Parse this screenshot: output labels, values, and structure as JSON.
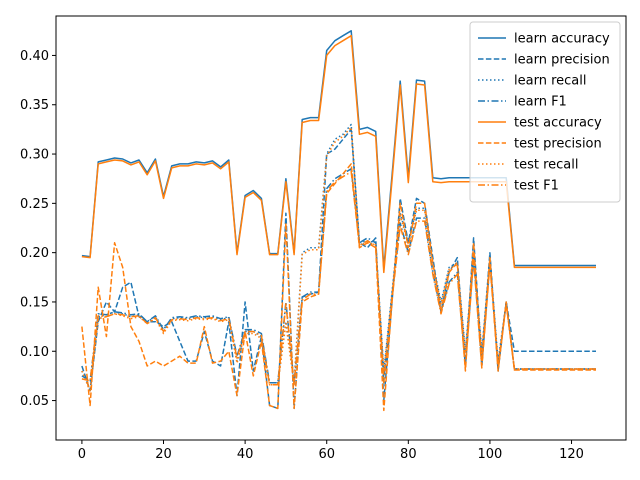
{
  "chart_data": {
    "type": "line",
    "title": "",
    "xlabel": "",
    "ylabel": "",
    "xlim": [
      -6.35,
      133.35
    ],
    "ylim": [
      0.01,
      0.44
    ],
    "xticks": [
      0,
      20,
      40,
      60,
      80,
      100,
      120
    ],
    "yticks": [
      0.05,
      0.1,
      0.15,
      0.2,
      0.25,
      0.3,
      0.35,
      0.4
    ],
    "grid": false,
    "legend_position": "top-right",
    "colors": {
      "learn": "#1f77b4",
      "test": "#ff7f0e"
    },
    "series": [
      {
        "name": "learn accuracy",
        "group": "learn",
        "style": "solid",
        "x": [
          0,
          2,
          4,
          6,
          8,
          10,
          12,
          14,
          16,
          18,
          20,
          22,
          24,
          26,
          28,
          30,
          32,
          34,
          36,
          38,
          40,
          42,
          44,
          46,
          48,
          50,
          52,
          54,
          56,
          58,
          60,
          62,
          64,
          66,
          68,
          70,
          72,
          74,
          76,
          78,
          80,
          82,
          84,
          86,
          88,
          90,
          92,
          94,
          96,
          98,
          100,
          102,
          104,
          106,
          108,
          110,
          112,
          114,
          116,
          118,
          120,
          122,
          124,
          126
        ],
        "values": [
          0.197,
          0.196,
          0.292,
          0.294,
          0.296,
          0.295,
          0.291,
          0.294,
          0.281,
          0.295,
          0.257,
          0.288,
          0.29,
          0.29,
          0.292,
          0.291,
          0.293,
          0.287,
          0.294,
          0.2,
          0.258,
          0.263,
          0.255,
          0.199,
          0.199,
          0.275,
          0.2,
          0.335,
          0.337,
          0.337,
          0.405,
          0.415,
          0.42,
          0.425,
          0.325,
          0.327,
          0.323,
          0.184,
          0.278,
          0.374,
          0.276,
          0.375,
          0.374,
          0.276,
          0.275,
          0.276,
          0.276,
          0.276,
          0.276,
          0.276,
          0.276,
          0.276,
          0.276,
          0.187,
          0.187,
          0.187,
          0.187,
          0.187,
          0.187,
          0.187,
          0.187,
          0.187,
          0.187,
          0.187
        ]
      },
      {
        "name": "learn precision",
        "group": "learn",
        "style": "dashed",
        "x": [
          0,
          2,
          4,
          6,
          8,
          10,
          12,
          14,
          16,
          18,
          20,
          22,
          24,
          26,
          28,
          30,
          32,
          34,
          36,
          38,
          40,
          42,
          44,
          46,
          48,
          50,
          52,
          54,
          56,
          58,
          60,
          62,
          64,
          66,
          68,
          70,
          72,
          74,
          76,
          78,
          80,
          82,
          84,
          86,
          88,
          90,
          92,
          94,
          96,
          98,
          100,
          102,
          104,
          106,
          108,
          110,
          112,
          114,
          116,
          118,
          120,
          122,
          124,
          126
        ],
        "values": [
          0.085,
          0.06,
          0.13,
          0.15,
          0.14,
          0.165,
          0.17,
          0.135,
          0.13,
          0.13,
          0.125,
          0.13,
          0.11,
          0.09,
          0.09,
          0.12,
          0.09,
          0.085,
          0.13,
          0.055,
          0.15,
          0.08,
          0.115,
          0.045,
          0.042,
          0.24,
          0.042,
          0.155,
          0.158,
          0.16,
          0.3,
          0.305,
          0.315,
          0.325,
          0.21,
          0.205,
          0.215,
          0.05,
          0.15,
          0.255,
          0.21,
          0.255,
          0.25,
          0.195,
          0.14,
          0.18,
          0.195,
          0.085,
          0.215,
          0.09,
          0.2,
          0.08,
          0.15,
          0.1,
          0.1,
          0.1,
          0.1,
          0.1,
          0.1,
          0.1,
          0.1,
          0.1,
          0.1,
          0.1
        ]
      },
      {
        "name": "learn recall",
        "group": "learn",
        "style": "dotted",
        "x": [
          0,
          2,
          4,
          6,
          8,
          10,
          12,
          14,
          16,
          18,
          20,
          22,
          24,
          26,
          28,
          30,
          32,
          34,
          36,
          38,
          40,
          42,
          44,
          46,
          48,
          50,
          52,
          54,
          56,
          58,
          60,
          62,
          64,
          66,
          68,
          70,
          72,
          74,
          76,
          78,
          80,
          82,
          84,
          86,
          88,
          90,
          92,
          94,
          96,
          98,
          100,
          102,
          104,
          106,
          108,
          110,
          112,
          114,
          116,
          118,
          120,
          122,
          124,
          126
        ],
        "values": [
          0.08,
          0.06,
          0.135,
          0.137,
          0.14,
          0.138,
          0.135,
          0.137,
          0.13,
          0.135,
          0.12,
          0.133,
          0.134,
          0.133,
          0.135,
          0.134,
          0.135,
          0.132,
          0.134,
          0.09,
          0.12,
          0.12,
          0.115,
          0.068,
          0.068,
          0.13,
          0.068,
          0.2,
          0.205,
          0.205,
          0.3,
          0.315,
          0.32,
          0.33,
          0.21,
          0.212,
          0.21,
          0.08,
          0.16,
          0.24,
          0.21,
          0.245,
          0.245,
          0.19,
          0.15,
          0.185,
          0.19,
          0.1,
          0.2,
          0.1,
          0.195,
          0.09,
          0.15,
          0.082,
          0.082,
          0.082,
          0.082,
          0.082,
          0.082,
          0.082,
          0.082,
          0.082,
          0.082,
          0.082
        ]
      },
      {
        "name": "learn F1",
        "group": "learn",
        "style": "dashdot",
        "x": [
          0,
          2,
          4,
          6,
          8,
          10,
          12,
          14,
          16,
          18,
          20,
          22,
          24,
          26,
          28,
          30,
          32,
          34,
          36,
          38,
          40,
          42,
          44,
          46,
          48,
          50,
          52,
          54,
          56,
          58,
          60,
          62,
          64,
          66,
          68,
          70,
          72,
          74,
          76,
          78,
          80,
          82,
          84,
          86,
          88,
          90,
          92,
          94,
          96,
          98,
          100,
          102,
          104,
          106,
          108,
          110,
          112,
          114,
          116,
          118,
          120,
          122,
          124,
          126
        ],
        "values": [
          0.075,
          0.07,
          0.138,
          0.137,
          0.14,
          0.139,
          0.137,
          0.138,
          0.13,
          0.136,
          0.122,
          0.134,
          0.135,
          0.134,
          0.136,
          0.135,
          0.136,
          0.133,
          0.135,
          0.095,
          0.122,
          0.122,
          0.118,
          0.068,
          0.068,
          0.15,
          0.068,
          0.155,
          0.16,
          0.16,
          0.265,
          0.275,
          0.28,
          0.285,
          0.21,
          0.215,
          0.21,
          0.07,
          0.155,
          0.23,
          0.2,
          0.235,
          0.235,
          0.18,
          0.14,
          0.17,
          0.18,
          0.085,
          0.195,
          0.085,
          0.19,
          0.085,
          0.15,
          0.082,
          0.082,
          0.082,
          0.082,
          0.082,
          0.082,
          0.082,
          0.082,
          0.082,
          0.082,
          0.082
        ]
      },
      {
        "name": "test accuracy",
        "group": "test",
        "style": "solid",
        "x": [
          0,
          2,
          4,
          6,
          8,
          10,
          12,
          14,
          16,
          18,
          20,
          22,
          24,
          26,
          28,
          30,
          32,
          34,
          36,
          38,
          40,
          42,
          44,
          46,
          48,
          50,
          52,
          54,
          56,
          58,
          60,
          62,
          64,
          66,
          68,
          70,
          72,
          74,
          76,
          78,
          80,
          82,
          84,
          86,
          88,
          90,
          92,
          94,
          96,
          98,
          100,
          102,
          104,
          106,
          108,
          110,
          112,
          114,
          116,
          118,
          120,
          122,
          124,
          126
        ],
        "values": [
          0.196,
          0.195,
          0.29,
          0.292,
          0.294,
          0.293,
          0.289,
          0.292,
          0.279,
          0.293,
          0.255,
          0.286,
          0.288,
          0.288,
          0.29,
          0.289,
          0.291,
          0.285,
          0.292,
          0.198,
          0.256,
          0.261,
          0.253,
          0.198,
          0.198,
          0.272,
          0.198,
          0.332,
          0.334,
          0.334,
          0.4,
          0.41,
          0.415,
          0.42,
          0.32,
          0.322,
          0.318,
          0.18,
          0.273,
          0.37,
          0.271,
          0.371,
          0.37,
          0.272,
          0.271,
          0.272,
          0.272,
          0.272,
          0.272,
          0.272,
          0.272,
          0.272,
          0.272,
          0.185,
          0.185,
          0.185,
          0.185,
          0.185,
          0.185,
          0.185,
          0.185,
          0.185,
          0.185,
          0.185
        ]
      },
      {
        "name": "test precision",
        "group": "test",
        "style": "dashed",
        "x": [
          0,
          2,
          4,
          6,
          8,
          10,
          12,
          14,
          16,
          18,
          20,
          22,
          24,
          26,
          28,
          30,
          32,
          34,
          36,
          38,
          40,
          42,
          44,
          46,
          48,
          50,
          52,
          54,
          56,
          58,
          60,
          62,
          64,
          66,
          68,
          70,
          72,
          74,
          76,
          78,
          80,
          82,
          84,
          86,
          88,
          90,
          92,
          94,
          96,
          98,
          100,
          102,
          104,
          106,
          108,
          110,
          112,
          114,
          116,
          118,
          120,
          122,
          124,
          126
        ],
        "values": [
          0.125,
          0.045,
          0.165,
          0.115,
          0.21,
          0.185,
          0.125,
          0.11,
          0.085,
          0.09,
          0.085,
          0.09,
          0.095,
          0.088,
          0.088,
          0.125,
          0.088,
          0.09,
          0.1,
          0.055,
          0.12,
          0.075,
          0.11,
          0.045,
          0.042,
          0.23,
          0.042,
          0.15,
          0.155,
          0.158,
          0.26,
          0.27,
          0.28,
          0.29,
          0.205,
          0.21,
          0.205,
          0.04,
          0.15,
          0.25,
          0.205,
          0.25,
          0.25,
          0.19,
          0.14,
          0.18,
          0.19,
          0.08,
          0.21,
          0.085,
          0.195,
          0.08,
          0.15,
          0.081,
          0.081,
          0.081,
          0.081,
          0.081,
          0.081,
          0.081,
          0.081,
          0.081,
          0.081,
          0.081
        ]
      },
      {
        "name": "test recall",
        "group": "test",
        "style": "dotted",
        "x": [
          0,
          2,
          4,
          6,
          8,
          10,
          12,
          14,
          16,
          18,
          20,
          22,
          24,
          26,
          28,
          30,
          32,
          34,
          36,
          38,
          40,
          42,
          44,
          46,
          48,
          50,
          52,
          54,
          56,
          58,
          60,
          62,
          64,
          66,
          68,
          70,
          72,
          74,
          76,
          78,
          80,
          82,
          84,
          86,
          88,
          90,
          92,
          94,
          96,
          98,
          100,
          102,
          104,
          106,
          108,
          110,
          112,
          114,
          116,
          118,
          120,
          122,
          124,
          126
        ],
        "values": [
          0.08,
          0.06,
          0.133,
          0.135,
          0.138,
          0.136,
          0.133,
          0.135,
          0.128,
          0.133,
          0.118,
          0.131,
          0.132,
          0.131,
          0.133,
          0.132,
          0.133,
          0.13,
          0.132,
          0.088,
          0.118,
          0.118,
          0.113,
          0.066,
          0.066,
          0.128,
          0.066,
          0.198,
          0.203,
          0.203,
          0.298,
          0.312,
          0.318,
          0.327,
          0.208,
          0.21,
          0.208,
          0.078,
          0.158,
          0.238,
          0.208,
          0.243,
          0.243,
          0.188,
          0.148,
          0.183,
          0.188,
          0.098,
          0.198,
          0.098,
          0.193,
          0.088,
          0.148,
          0.082,
          0.082,
          0.082,
          0.082,
          0.082,
          0.082,
          0.082,
          0.082,
          0.082,
          0.082,
          0.082
        ]
      },
      {
        "name": "test F1",
        "group": "test",
        "style": "dashdot",
        "x": [
          0,
          2,
          4,
          6,
          8,
          10,
          12,
          14,
          16,
          18,
          20,
          22,
          24,
          26,
          28,
          30,
          32,
          34,
          36,
          38,
          40,
          42,
          44,
          46,
          48,
          50,
          52,
          54,
          56,
          58,
          60,
          62,
          64,
          66,
          68,
          70,
          72,
          74,
          76,
          78,
          80,
          82,
          84,
          86,
          88,
          90,
          92,
          94,
          96,
          98,
          100,
          102,
          104,
          106,
          108,
          110,
          112,
          114,
          116,
          118,
          120,
          122,
          124,
          126
        ],
        "values": [
          0.072,
          0.07,
          0.136,
          0.135,
          0.138,
          0.137,
          0.135,
          0.136,
          0.128,
          0.134,
          0.12,
          0.132,
          0.133,
          0.132,
          0.134,
          0.133,
          0.134,
          0.131,
          0.133,
          0.093,
          0.12,
          0.12,
          0.116,
          0.066,
          0.066,
          0.148,
          0.066,
          0.152,
          0.158,
          0.158,
          0.262,
          0.272,
          0.277,
          0.282,
          0.207,
          0.212,
          0.207,
          0.068,
          0.152,
          0.227,
          0.198,
          0.232,
          0.232,
          0.178,
          0.138,
          0.168,
          0.178,
          0.083,
          0.193,
          0.083,
          0.188,
          0.083,
          0.148,
          0.082,
          0.082,
          0.082,
          0.082,
          0.082,
          0.082,
          0.082,
          0.082,
          0.082,
          0.082,
          0.082
        ]
      }
    ]
  }
}
